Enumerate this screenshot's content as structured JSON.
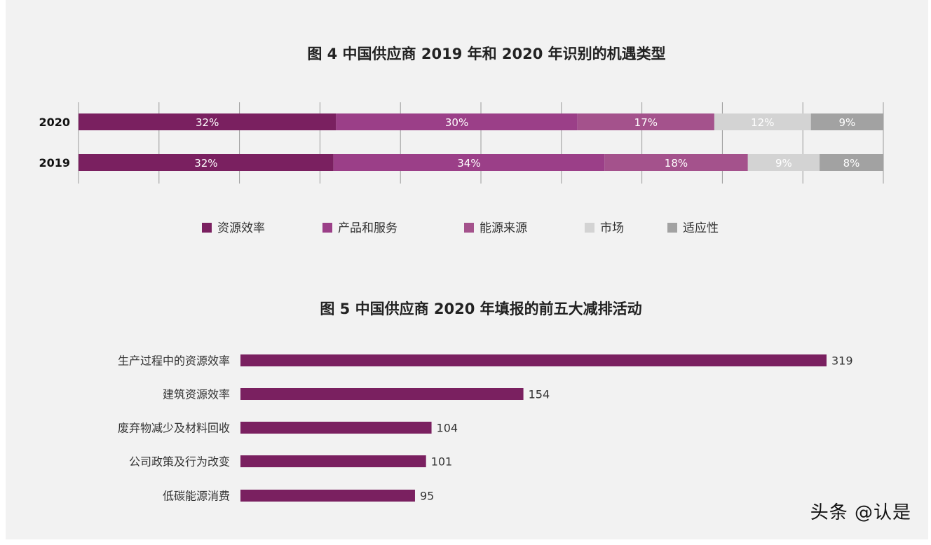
{
  "chart_data": [
    {
      "type": "bar",
      "orientation": "horizontal",
      "stacked": true,
      "percent": true,
      "title": "图 4   中国供应商 2019 年和 2020 年识别的机遇类型",
      "categories": [
        "2020",
        "2019"
      ],
      "series": [
        {
          "name": "资源效率",
          "values": [
            32,
            32
          ],
          "color": "#7a2060"
        },
        {
          "name": "产品和服务",
          "values": [
            30,
            34
          ],
          "color": "#9b3f88"
        },
        {
          "name": "能源来源",
          "values": [
            17,
            18
          ],
          "color": "#a4528c"
        },
        {
          "name": "市场",
          "values": [
            12,
            9
          ],
          "color": "#d3d3d3"
        },
        {
          "name": "适应性",
          "values": [
            9,
            8
          ],
          "color": "#a2a2a2"
        }
      ],
      "data_labels": [
        [
          "32%",
          "30%",
          "17%",
          "12%",
          "9%"
        ],
        [
          "32%",
          "34%",
          "18%",
          "9%",
          "8%"
        ]
      ],
      "grid": true,
      "legend_position": "bottom"
    },
    {
      "type": "bar",
      "orientation": "horizontal",
      "title": "图 5   中国供应商 2020 年填报的前五大减排活动",
      "categories": [
        "生产过程中的资源效率",
        "建筑资源效率",
        "废弃物减少及材料回收",
        "公司政策及行为改变",
        "低碳能源消费"
      ],
      "values": [
        319,
        154,
        104,
        101,
        95
      ],
      "color": "#7a2060",
      "xlim": [
        0,
        319
      ],
      "grid": false
    }
  ],
  "watermark": "头条 @认是"
}
